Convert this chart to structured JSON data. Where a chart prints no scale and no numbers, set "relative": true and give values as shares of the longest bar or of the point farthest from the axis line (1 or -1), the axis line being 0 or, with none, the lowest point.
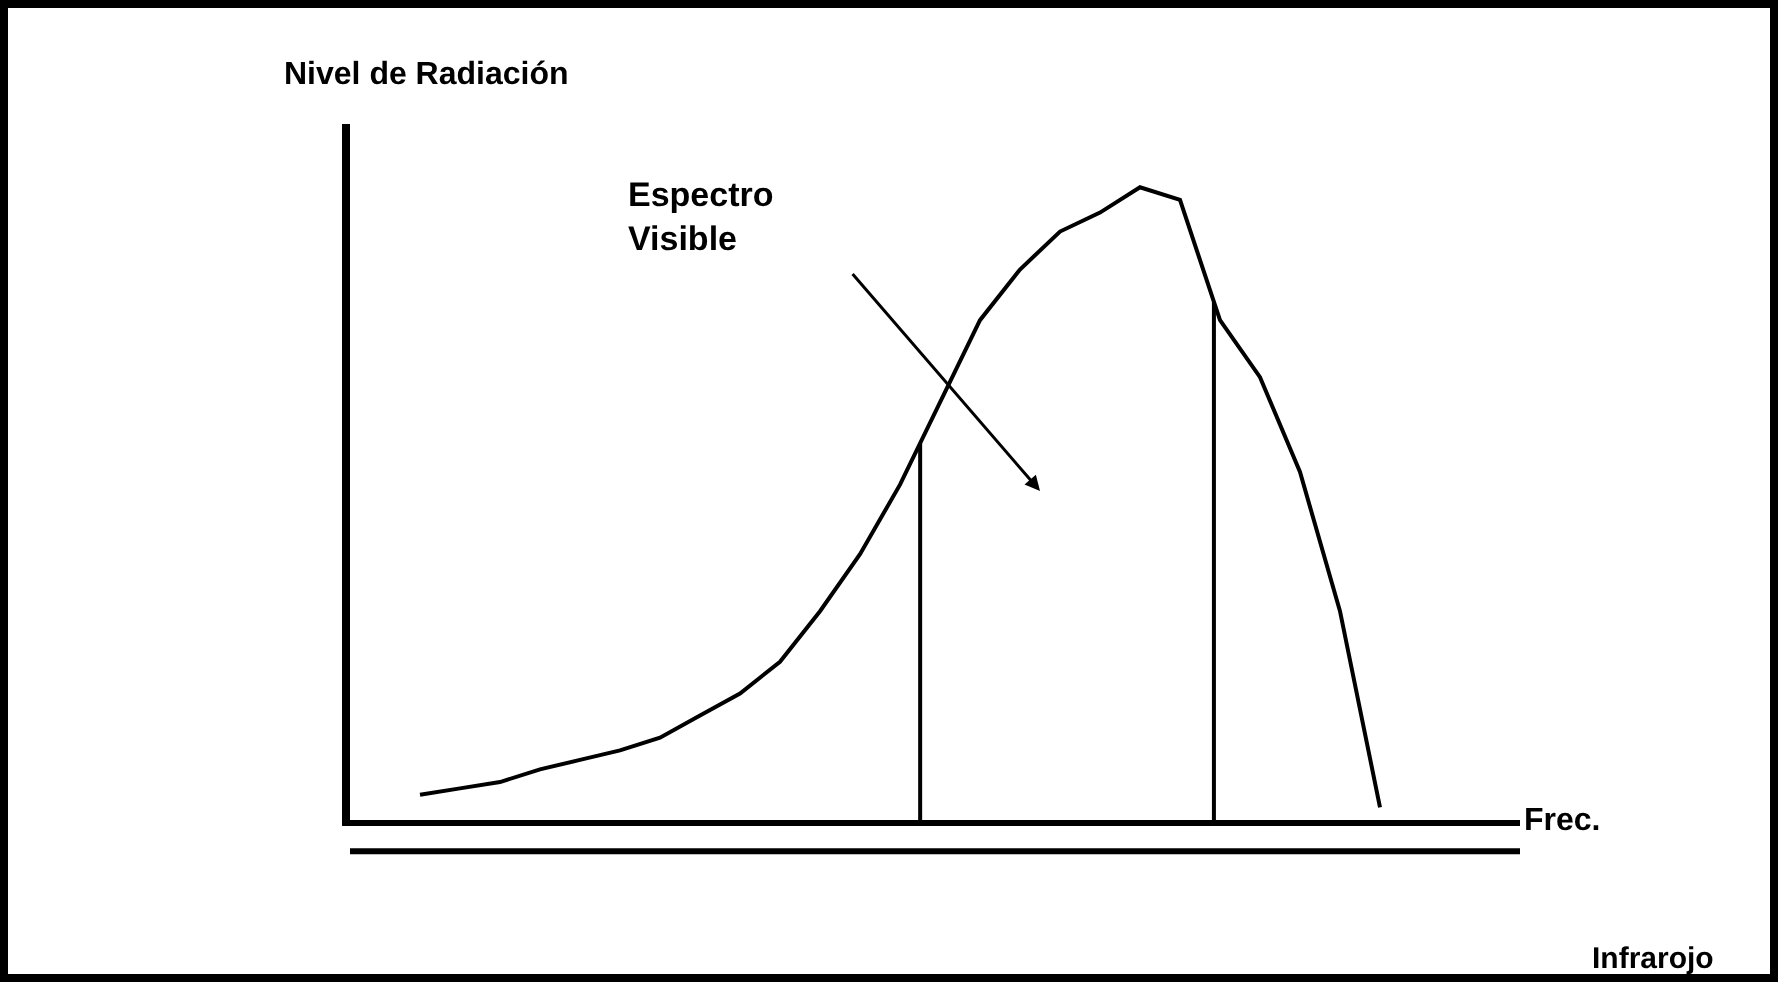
{
  "chart_data": {
    "type": "line",
    "relative": true,
    "ylabel": "Nivel de Radiación",
    "xlabel": "Frec.",
    "categories": [
      null,
      null,
      null,
      null,
      null,
      null,
      null,
      null,
      null,
      null,
      null,
      null,
      null,
      null,
      null,
      null,
      null,
      null,
      null,
      null,
      null,
      null,
      null,
      null,
      null
    ],
    "series": [
      {
        "color": "#000000",
        "values": [
          0.04,
          0.05,
          0.06,
          0.08,
          0.095,
          0.11,
          0.13,
          0.165,
          0.2,
          0.25,
          0.33,
          0.42,
          0.53,
          0.66,
          0.79,
          0.87,
          0.93,
          0.96,
          1,
          0.98,
          0.79,
          0.7,
          0.55,
          0.33,
          0.02
        ]
      }
    ],
    "annotations": [
      "Espectro Visible",
      "Infrarojo"
    ],
    "grid": false,
    "marker": "none",
    "line_style": "solid"
  }
}
